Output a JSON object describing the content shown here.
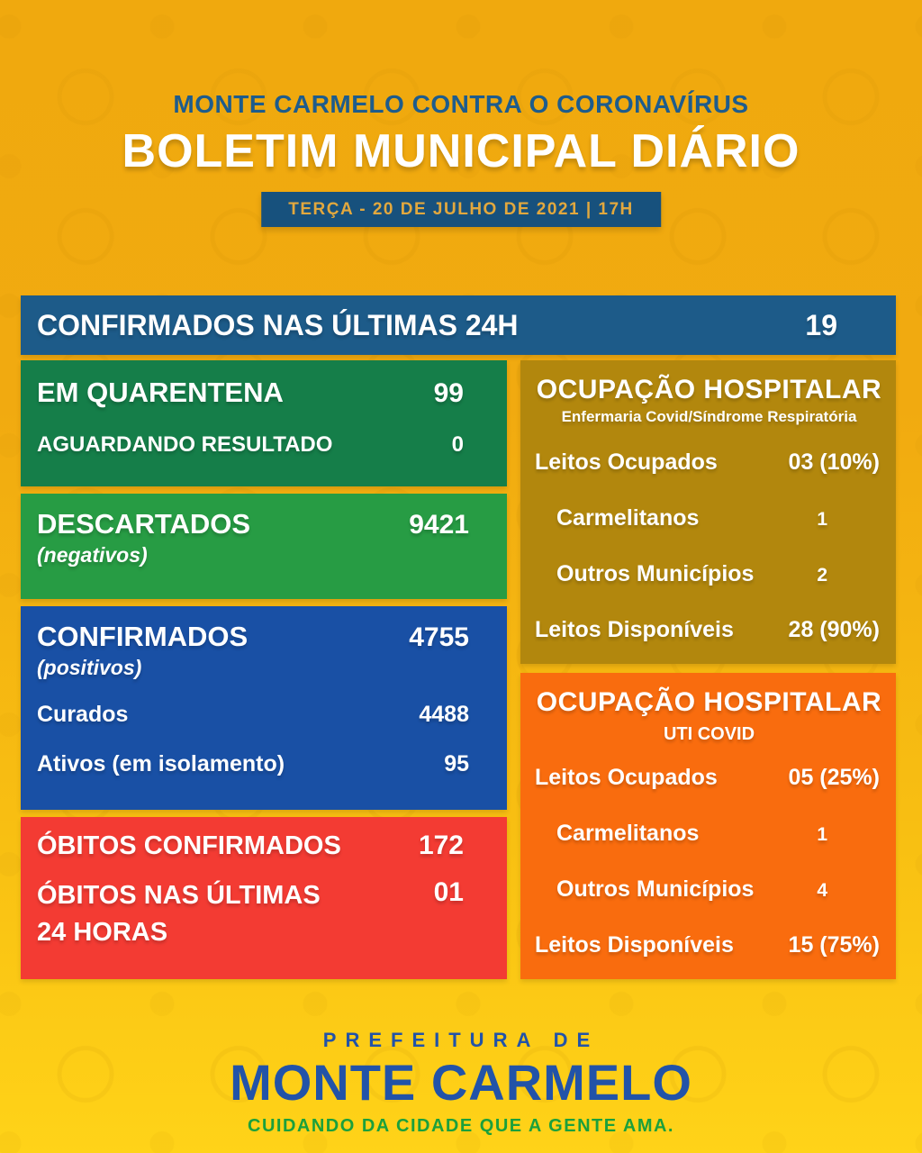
{
  "colors": {
    "background_top": "#F0A90E",
    "background_bottom": "#FFD318",
    "kicker_blue": "#1E5C8C",
    "date_banner_bg": "#17517D",
    "date_banner_text": "#E2A83E",
    "summary_bar_blue": "#1D5B89",
    "quarantine_green": "#157E49",
    "discarded_green": "#279C44",
    "confirmed_blue": "#1950A5",
    "deaths_red": "#F33B33",
    "ward_mustard": "#B2870D",
    "icu_orange": "#F96C0E",
    "footer_blue": "#2253A8",
    "footer_green": "#1BA03C"
  },
  "header": {
    "kicker": "MONTE CARMELO CONTRA O CORONAVÍRUS",
    "title": "BOLETIM MUNICIPAL DIÁRIO",
    "date_banner": "TERÇA - 20 DE JULHO DE 2021 | 17H"
  },
  "summary_bar": {
    "label": "CONFIRMADOS NAS ÚLTIMAS 24H",
    "value": "19"
  },
  "left_column": {
    "quarantena": {
      "rows": [
        {
          "label": "EM QUARENTENA",
          "value": "99"
        },
        {
          "label": "AGUARDANDO RESULTADO",
          "value": "0"
        }
      ]
    },
    "descartados": {
      "label": "DESCARTADOS",
      "sublabel": "(negativos)",
      "value": "9421"
    },
    "confirmados": {
      "label": "CONFIRMADOS",
      "sublabel": "(positivos)",
      "value": "4755",
      "rows": [
        {
          "label": "Curados",
          "value": "4488"
        },
        {
          "label": "Ativos (em isolamento)",
          "value": "95"
        }
      ]
    },
    "obitos": {
      "rows": [
        {
          "label": "ÓBITOS CONFIRMADOS",
          "value": "172"
        },
        {
          "label": "ÓBITOS NAS ÚLTIMAS 24 HORAS",
          "value": "01"
        }
      ]
    }
  },
  "right_column": {
    "enfermaria": {
      "title": "OCUPAÇÃO HOSPITALAR",
      "subtitle": "Enfermaria Covid/Síndrome Respiratória",
      "rows": [
        {
          "label": "Leitos Ocupados",
          "value": "03 (10%)"
        },
        {
          "label": "Carmelitanos",
          "value": "1"
        },
        {
          "label": "Outros Municípios",
          "value": "2"
        },
        {
          "label": "Leitos Disponíveis",
          "value": "28 (90%)"
        }
      ]
    },
    "uti": {
      "title": "OCUPAÇÃO HOSPITALAR",
      "subtitle": "UTI COVID",
      "rows": [
        {
          "label": "Leitos Ocupados",
          "value": "05 (25%)"
        },
        {
          "label": "Carmelitanos",
          "value": "1"
        },
        {
          "label": "Outros Municípios",
          "value": "4"
        },
        {
          "label": "Leitos Disponíveis",
          "value": "15 (75%)"
        }
      ]
    }
  },
  "footer": {
    "line1": "PREFEITURA DE",
    "line2": "MONTE CARMELO",
    "line3": "CUIDANDO DA CIDADE QUE A GENTE AMA."
  }
}
